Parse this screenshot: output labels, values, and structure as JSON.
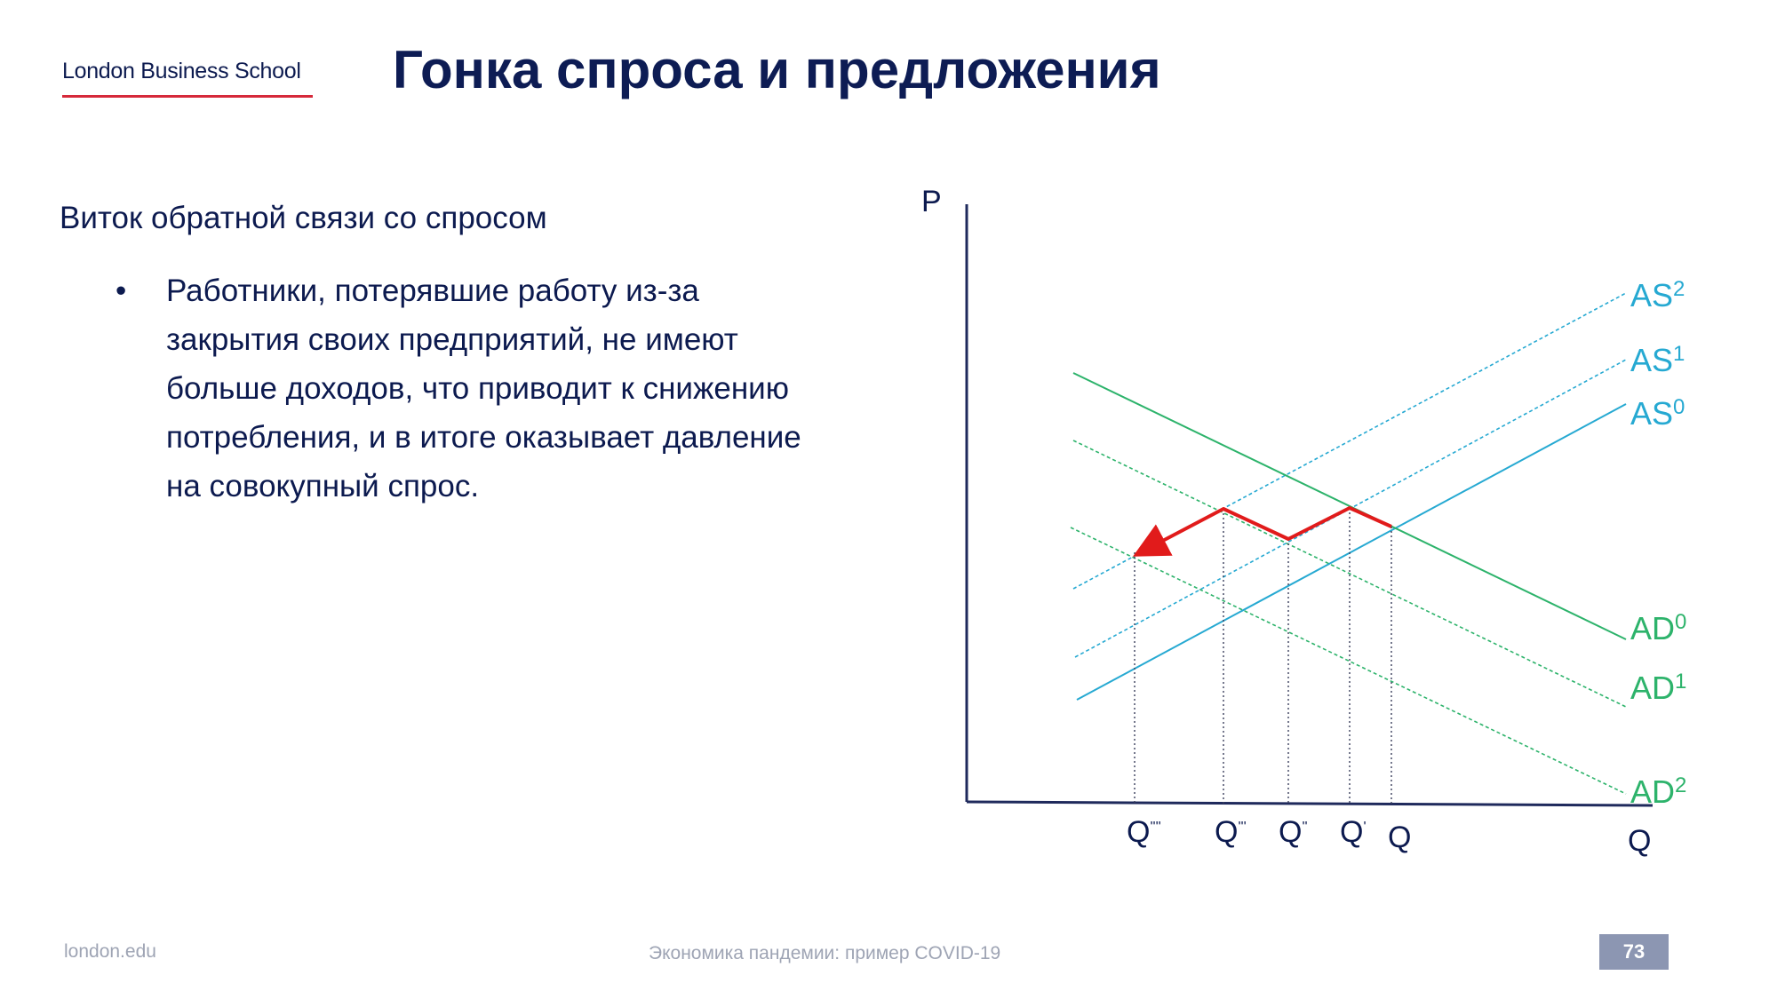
{
  "header": {
    "logo_text": "London Business School",
    "title": "Гонка спроса и предложения"
  },
  "content": {
    "subheading": "Виток обратной связи со спросом",
    "bullets": [
      "Работники, потерявшие работу из-за закрытия своих предприятий, не имеют больше доходов, что приводит к снижению потребления, и в итоге оказывает давление на совокупный спрос."
    ],
    "bullet_symbol": "•"
  },
  "diagram": {
    "axes": {
      "y_label": "P",
      "x_label": "Q"
    },
    "curves": [
      {
        "id": "AS0",
        "base": "AS",
        "sup": "0",
        "kind": "supply",
        "style": "solid"
      },
      {
        "id": "AS1",
        "base": "AS",
        "sup": "1",
        "kind": "supply",
        "style": "dashed"
      },
      {
        "id": "AS2",
        "base": "AS",
        "sup": "2",
        "kind": "supply",
        "style": "dashed"
      },
      {
        "id": "AD0",
        "base": "AD",
        "sup": "0",
        "kind": "demand",
        "style": "solid"
      },
      {
        "id": "AD1",
        "base": "AD",
        "sup": "1",
        "kind": "demand",
        "style": "dashed"
      },
      {
        "id": "AD2",
        "base": "AD",
        "sup": "2",
        "kind": "demand",
        "style": "dashed"
      }
    ],
    "quantity_labels": [
      {
        "id": "q4",
        "base": "Q",
        "sup": "''''"
      },
      {
        "id": "q3",
        "base": "Q",
        "sup": "'''"
      },
      {
        "id": "q2",
        "base": "Q",
        "sup": "''"
      },
      {
        "id": "q1",
        "base": "Q",
        "sup": "'"
      },
      {
        "id": "q0",
        "base": "Q",
        "sup": ""
      }
    ],
    "colors": {
      "supply": "#26a9d2",
      "demand": "#2db36b",
      "path": "#e11b1b",
      "axis": "#1f2a5c",
      "guides": "#3a3f5c"
    }
  },
  "footer": {
    "left": "london.edu",
    "center": "Экономика пандемии: пример COVID-19",
    "page_number": "73"
  }
}
